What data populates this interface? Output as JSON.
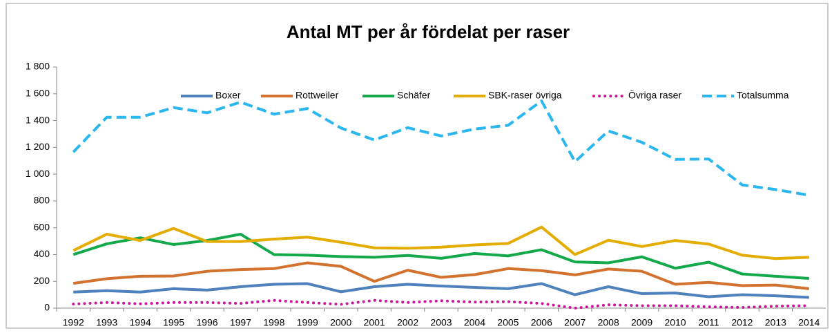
{
  "chart_data": {
    "type": "line",
    "title": "Antal MT per år fördelat per raser",
    "x": [
      1992,
      1993,
      1994,
      1995,
      1996,
      1997,
      1998,
      1999,
      2000,
      2001,
      2002,
      2003,
      2004,
      2005,
      2006,
      2007,
      2008,
      2009,
      2010,
      2011,
      2012,
      2013,
      2014
    ],
    "series": [
      {
        "name": "Boxer",
        "color": "#4f81bd",
        "style": "solid",
        "values": [
          120,
          130,
          120,
          145,
          135,
          160,
          178,
          183,
          122,
          160,
          178,
          165,
          155,
          145,
          183,
          100,
          160,
          108,
          113,
          85,
          100,
          92,
          80
        ]
      },
      {
        "name": "Rottweiler",
        "color": "#d2722e",
        "style": "solid",
        "values": [
          185,
          220,
          238,
          240,
          275,
          288,
          295,
          338,
          312,
          200,
          283,
          230,
          250,
          295,
          280,
          248,
          292,
          275,
          178,
          192,
          168,
          172,
          145
        ]
      },
      {
        "name": "Schäfer",
        "color": "#13a84a",
        "style": "solid",
        "values": [
          400,
          480,
          525,
          475,
          505,
          552,
          400,
          395,
          385,
          380,
          393,
          372,
          408,
          390,
          436,
          345,
          338,
          383,
          298,
          343,
          255,
          238,
          222
        ]
      },
      {
        "name": "SBK-raser övriga",
        "color": "#e5ac00",
        "style": "solid",
        "values": [
          430,
          552,
          505,
          595,
          497,
          497,
          515,
          530,
          492,
          450,
          447,
          455,
          472,
          483,
          605,
          400,
          507,
          460,
          505,
          478,
          395,
          370,
          380
        ]
      },
      {
        "name": "Övriga raser",
        "color": "#cc1699",
        "style": "dotted",
        "values": [
          30,
          42,
          32,
          42,
          42,
          35,
          58,
          42,
          28,
          58,
          42,
          55,
          45,
          48,
          35,
          0,
          25,
          18,
          18,
          10,
          5,
          15,
          18
        ]
      },
      {
        "name": "Totalsumma",
        "color": "#2ab6ee",
        "style": "dashed",
        "values": [
          1165,
          1425,
          1425,
          1497,
          1458,
          1538,
          1448,
          1490,
          1345,
          1255,
          1347,
          1285,
          1337,
          1365,
          1547,
          1093,
          1323,
          1238,
          1110,
          1113,
          920,
          885,
          843
        ]
      }
    ],
    "ylim": [
      0,
      1800
    ],
    "yticks": [
      0,
      200,
      400,
      600,
      800,
      {
        "value": 1000,
        "label": "1 000"
      },
      {
        "value": 1200,
        "label": "1 200"
      },
      {
        "value": 1400,
        "label": "1 400"
      },
      {
        "value": 1600,
        "label": "1 600"
      },
      {
        "value": 1800,
        "label": "1 800"
      }
    ],
    "legend": "top",
    "grid": false
  }
}
